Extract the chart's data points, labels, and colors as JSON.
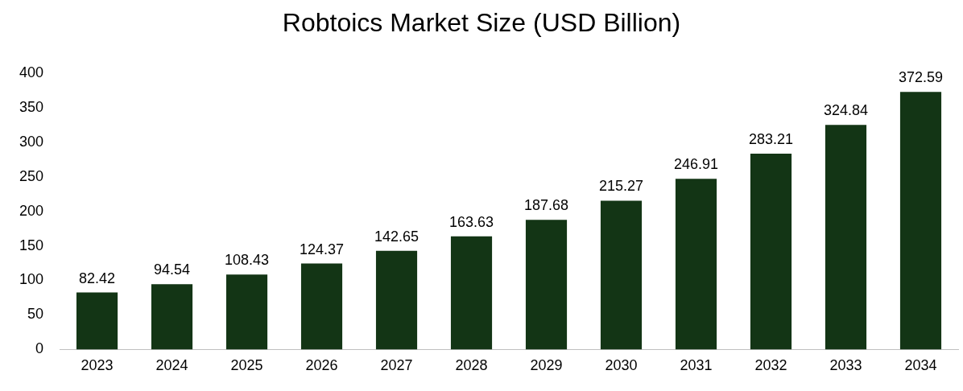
{
  "chart_data": {
    "type": "bar",
    "title": "Robtoics Market Size (USD Billion)",
    "categories": [
      "2023",
      "2024",
      "2025",
      "2026",
      "2027",
      "2028",
      "2029",
      "2030",
      "2031",
      "2032",
      "2033",
      "2034"
    ],
    "values": [
      82.42,
      94.54,
      108.43,
      124.37,
      142.65,
      163.63,
      187.68,
      215.27,
      246.91,
      283.21,
      324.84,
      372.59
    ],
    "color": "#133515",
    "ylim": [
      0,
      400
    ],
    "yticks": [
      0,
      50,
      100,
      150,
      200,
      250,
      300,
      350,
      400
    ],
    "grid": false,
    "legend": false,
    "data_labels": true
  }
}
